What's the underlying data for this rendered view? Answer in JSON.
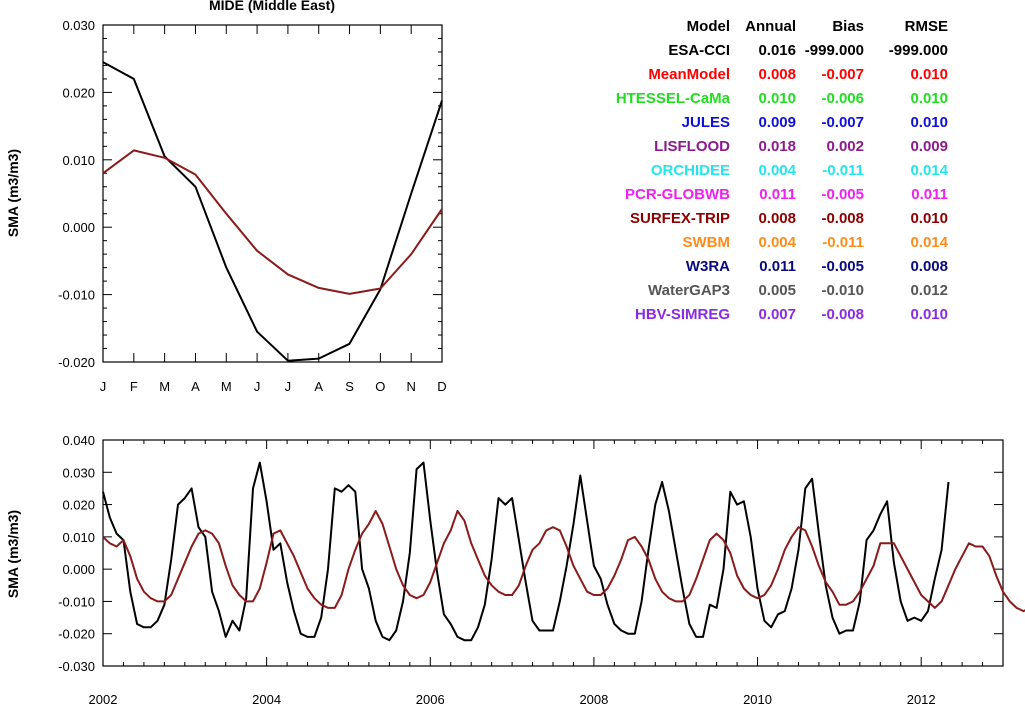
{
  "colors": {
    "observed": "#000000",
    "mean_model": "#8b1a1a"
  },
  "table": {
    "headers": [
      "Model",
      "Annual",
      "Bias",
      "RMSE"
    ],
    "rows": [
      {
        "model": "ESA-CCI",
        "annual": "0.016",
        "bias": "-999.000",
        "rmse": "-999.000",
        "color": "#000000"
      },
      {
        "model": "MeanModel",
        "annual": "0.008",
        "bias": "-0.007",
        "rmse": "0.010",
        "color": "#ff0000"
      },
      {
        "model": "HTESSEL-CaMa",
        "annual": "0.010",
        "bias": "-0.006",
        "rmse": "0.010",
        "color": "#22dd22"
      },
      {
        "model": "JULES",
        "annual": "0.009",
        "bias": "-0.007",
        "rmse": "0.010",
        "color": "#1010dd"
      },
      {
        "model": "LISFLOOD",
        "annual": "0.018",
        "bias": "0.002",
        "rmse": "0.009",
        "color": "#8b1a8b"
      },
      {
        "model": "ORCHIDEE",
        "annual": "0.004",
        "bias": "-0.011",
        "rmse": "0.014",
        "color": "#22e6ee"
      },
      {
        "model": "PCR-GLOBWB",
        "annual": "0.011",
        "bias": "-0.005",
        "rmse": "0.011",
        "color": "#ee22ee"
      },
      {
        "model": "SURFEX-TRIP",
        "annual": "0.008",
        "bias": "-0.008",
        "rmse": "0.010",
        "color": "#8b0000"
      },
      {
        "model": "SWBM",
        "annual": "0.004",
        "bias": "-0.011",
        "rmse": "0.014",
        "color": "#ff8c1a"
      },
      {
        "model": "W3RA",
        "annual": "0.011",
        "bias": "-0.005",
        "rmse": "0.008",
        "color": "#0a0a80"
      },
      {
        "model": "WaterGAP3",
        "annual": "0.005",
        "bias": "-0.010",
        "rmse": "0.012",
        "color": "#555555"
      },
      {
        "model": "HBV-SIMREG",
        "annual": "0.007",
        "bias": "-0.008",
        "rmse": "0.010",
        "color": "#8a2be2"
      }
    ]
  },
  "chart_data": [
    {
      "type": "line",
      "title": "MIDE (Middle East)",
      "ylabel": "SMA (m3/m3)",
      "xlabel": "",
      "categories": [
        "J",
        "F",
        "M",
        "A",
        "M",
        "J",
        "J",
        "A",
        "S",
        "O",
        "N",
        "D"
      ],
      "ylim": [
        -0.02,
        0.03
      ],
      "yticks": [
        "-0.020",
        "-0.010",
        "0.000",
        "0.010",
        "0.020",
        "0.030"
      ],
      "grid": false,
      "series": [
        {
          "color": "#000000",
          "values": [
            0.0245,
            0.022,
            0.0105,
            0.006,
            -0.006,
            -0.0155,
            -0.0198,
            -0.0195,
            -0.0173,
            -0.0092,
            0.005,
            0.0188
          ]
        },
        {
          "color": "#8b1a1a",
          "values": [
            0.008,
            0.0114,
            0.0103,
            0.0078,
            0.002,
            -0.0035,
            -0.007,
            -0.009,
            -0.0099,
            -0.0091,
            -0.004,
            0.0027
          ]
        }
      ]
    },
    {
      "type": "line",
      "title": "",
      "ylabel": "SMA (m3/m3)",
      "xlabel": "",
      "xlim": [
        2002,
        2013
      ],
      "xticks": [
        "2002",
        "2004",
        "2006",
        "2008",
        "2010",
        "2012"
      ],
      "ylim": [
        -0.03,
        0.04
      ],
      "yticks": [
        "-0.030",
        "-0.020",
        "-0.010",
        "0.000",
        "0.010",
        "0.020",
        "0.030",
        "0.040"
      ],
      "grid": false,
      "series": [
        {
          "color": "#000000",
          "values": [
            0.024,
            0.016,
            0.011,
            0.009,
            -0.007,
            -0.017,
            -0.018,
            -0.018,
            -0.016,
            -0.011,
            0.003,
            0.02,
            0.022,
            0.025,
            0.013,
            0.01,
            -0.007,
            -0.013,
            -0.021,
            -0.016,
            -0.019,
            -0.009,
            0.025,
            0.033,
            0.021,
            0.006,
            0.008,
            -0.004,
            -0.013,
            -0.02,
            -0.021,
            -0.021,
            -0.015,
            0.0,
            0.025,
            0.024,
            0.026,
            0.024,
            0.0,
            -0.006,
            -0.016,
            -0.021,
            -0.022,
            -0.019,
            -0.01,
            0.005,
            0.031,
            0.033,
            0.015,
            -0.001,
            -0.014,
            -0.017,
            -0.021,
            -0.022,
            -0.022,
            -0.018,
            -0.011,
            0.003,
            0.022,
            0.02,
            0.022,
            0.009,
            -0.004,
            -0.016,
            -0.019,
            -0.019,
            -0.019,
            -0.01,
            0.001,
            0.014,
            0.029,
            0.015,
            0.001,
            -0.003,
            -0.011,
            -0.017,
            -0.019,
            -0.02,
            -0.02,
            -0.01,
            0.006,
            0.02,
            0.027,
            0.018,
            0.006,
            -0.006,
            -0.017,
            -0.021,
            -0.021,
            -0.011,
            -0.012,
            0.0,
            0.024,
            0.02,
            0.021,
            0.01,
            -0.006,
            -0.016,
            -0.018,
            -0.014,
            -0.013,
            -0.006,
            0.006,
            0.025,
            0.028,
            0.011,
            -0.005,
            -0.015,
            -0.02,
            -0.019,
            -0.019,
            -0.01,
            0.009,
            0.012,
            0.017,
            0.021,
            0.002,
            -0.01,
            -0.016,
            -0.015,
            -0.016,
            -0.013,
            -0.003,
            0.006,
            0.027
          ]
        },
        {
          "color": "#8b1a1a",
          "values": [
            0.01,
            0.008,
            0.007,
            0.009,
            0.004,
            -0.003,
            -0.007,
            -0.009,
            -0.01,
            -0.01,
            -0.008,
            -0.003,
            0.002,
            0.007,
            0.011,
            0.012,
            0.011,
            0.008,
            0.001,
            -0.005,
            -0.008,
            -0.01,
            -0.01,
            -0.006,
            0.002,
            0.011,
            0.012,
            0.008,
            0.004,
            -0.001,
            -0.006,
            -0.009,
            -0.011,
            -0.012,
            -0.012,
            -0.008,
            0.0,
            0.006,
            0.011,
            0.014,
            0.018,
            0.014,
            0.007,
            0.0,
            -0.005,
            -0.008,
            -0.009,
            -0.008,
            -0.004,
            0.002,
            0.008,
            0.012,
            0.018,
            0.015,
            0.008,
            0.003,
            -0.002,
            -0.005,
            -0.007,
            -0.008,
            -0.008,
            -0.005,
            0.001,
            0.006,
            0.008,
            0.012,
            0.013,
            0.012,
            0.007,
            0.001,
            -0.003,
            -0.007,
            -0.008,
            -0.008,
            -0.006,
            -0.002,
            0.003,
            0.009,
            0.01,
            0.007,
            0.003,
            -0.003,
            -0.007,
            -0.009,
            -0.01,
            -0.01,
            -0.008,
            -0.003,
            0.003,
            0.009,
            0.011,
            0.009,
            0.005,
            -0.002,
            -0.006,
            -0.008,
            -0.009,
            -0.008,
            -0.005,
            0.0,
            0.006,
            0.01,
            0.013,
            0.012,
            0.007,
            0.001,
            -0.004,
            -0.007,
            -0.011,
            -0.011,
            -0.01,
            -0.007,
            -0.003,
            0.001,
            0.008,
            0.008,
            0.008,
            0.004,
            0.0,
            -0.004,
            -0.008,
            -0.01,
            -0.012,
            -0.01,
            -0.005,
            0.0,
            0.004,
            0.008,
            0.007,
            0.007,
            0.004,
            -0.002,
            -0.007,
            -0.01,
            -0.012,
            -0.013,
            -0.012,
            -0.008,
            0.003
          ]
        }
      ]
    }
  ]
}
